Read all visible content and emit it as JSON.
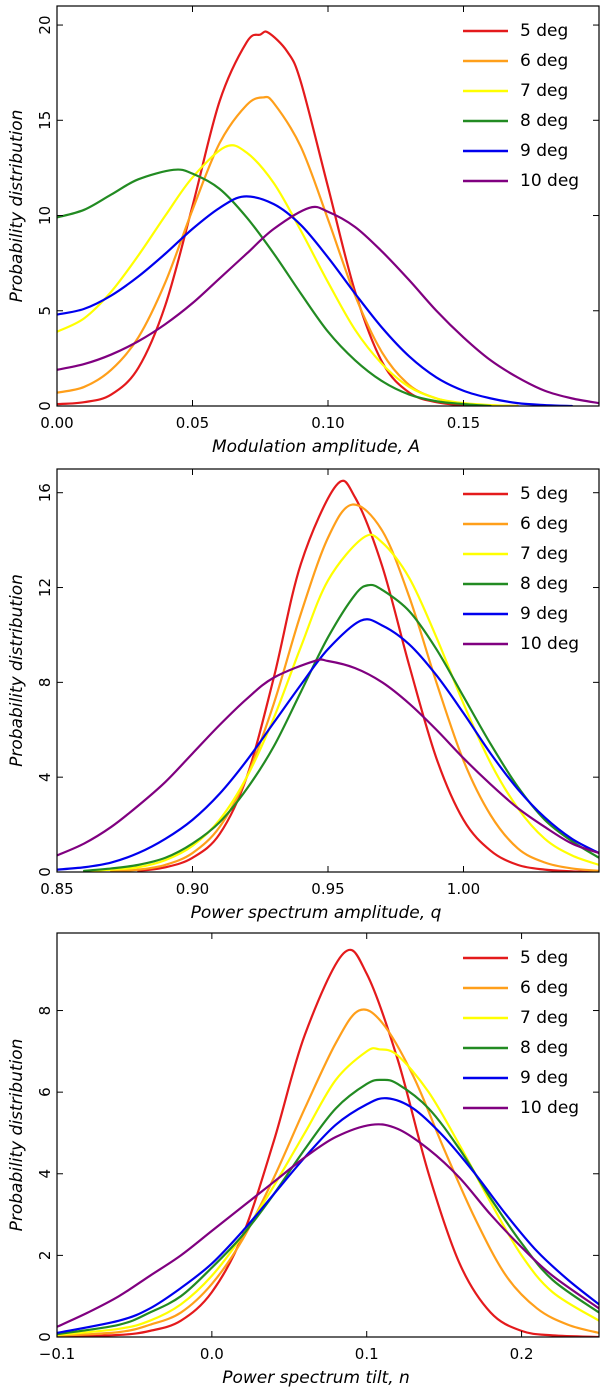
{
  "chart_data": [
    {
      "type": "line",
      "xlabel": "Modulation amplitude, A",
      "ylabel": "Probability distribution",
      "xlim": [
        0.0,
        0.2
      ],
      "ylim": [
        0,
        21
      ],
      "xticks": [
        0.0,
        0.05,
        0.1,
        0.15
      ],
      "xtick_labels": [
        "0.00",
        "0.05",
        "0.10",
        "0.15"
      ],
      "yticks": [
        0,
        5,
        10,
        15,
        20
      ],
      "ytick_labels": [
        "0",
        "5",
        "10",
        "15",
        "20"
      ],
      "legend_position": "top-right",
      "series": [
        {
          "name": "5 deg",
          "color": "#e41a1c",
          "x": [
            0.0,
            0.01,
            0.02,
            0.03,
            0.04,
            0.05,
            0.06,
            0.07,
            0.075,
            0.078,
            0.085,
            0.09,
            0.1,
            0.11,
            0.12,
            0.13,
            0.14,
            0.15,
            0.16,
            0.17
          ],
          "y": [
            0.1,
            0.2,
            0.6,
            2.0,
            5.3,
            10.5,
            16.0,
            19.1,
            19.5,
            19.6,
            18.6,
            17.0,
            11.5,
            6.0,
            2.3,
            0.7,
            0.2,
            0.05,
            0.01,
            0
          ]
        },
        {
          "name": "6 deg",
          "color": "#ff9f1a",
          "x": [
            0.0,
            0.01,
            0.02,
            0.03,
            0.04,
            0.05,
            0.06,
            0.07,
            0.076,
            0.08,
            0.09,
            0.1,
            0.11,
            0.12,
            0.13,
            0.14,
            0.15,
            0.16,
            0.17
          ],
          "y": [
            0.7,
            1.0,
            1.9,
            3.6,
            6.5,
            10.3,
            13.8,
            15.8,
            16.2,
            15.9,
            13.6,
            9.8,
            5.8,
            2.8,
            1.1,
            0.4,
            0.12,
            0.03,
            0
          ]
        },
        {
          "name": "7 deg",
          "color": "#ffff00",
          "x": [
            0.0,
            0.01,
            0.02,
            0.03,
            0.04,
            0.05,
            0.062,
            0.07,
            0.08,
            0.09,
            0.1,
            0.11,
            0.12,
            0.13,
            0.14,
            0.15,
            0.16,
            0.17
          ],
          "y": [
            3.9,
            4.6,
            6.0,
            7.9,
            10.0,
            12.0,
            13.6,
            13.3,
            11.7,
            9.2,
            6.5,
            4.0,
            2.2,
            1.0,
            0.4,
            0.15,
            0.05,
            0
          ]
        },
        {
          "name": "8 deg",
          "color": "#228b22",
          "x": [
            0.0,
            0.01,
            0.02,
            0.03,
            0.043,
            0.05,
            0.06,
            0.07,
            0.08,
            0.09,
            0.1,
            0.11,
            0.12,
            0.13,
            0.14,
            0.15,
            0.16
          ],
          "y": [
            9.9,
            10.3,
            11.1,
            11.9,
            12.4,
            12.2,
            11.4,
            9.9,
            8.0,
            5.9,
            3.9,
            2.4,
            1.3,
            0.6,
            0.25,
            0.1,
            0
          ]
        },
        {
          "name": "9 deg",
          "color": "#0000ee",
          "x": [
            0.0,
            0.01,
            0.02,
            0.03,
            0.04,
            0.05,
            0.06,
            0.069,
            0.08,
            0.09,
            0.1,
            0.11,
            0.12,
            0.13,
            0.14,
            0.15,
            0.16,
            0.17,
            0.18,
            0.19
          ],
          "y": [
            4.8,
            5.1,
            5.8,
            6.8,
            8.0,
            9.3,
            10.4,
            11.0,
            10.6,
            9.5,
            7.8,
            5.9,
            4.1,
            2.6,
            1.5,
            0.8,
            0.4,
            0.15,
            0.05,
            0
          ]
        },
        {
          "name": "10 deg",
          "color": "#800080",
          "x": [
            0.0,
            0.01,
            0.02,
            0.03,
            0.04,
            0.05,
            0.06,
            0.07,
            0.08,
            0.093,
            0.1,
            0.11,
            0.12,
            0.13,
            0.14,
            0.15,
            0.16,
            0.17,
            0.18,
            0.19,
            0.2
          ],
          "y": [
            1.9,
            2.2,
            2.7,
            3.4,
            4.3,
            5.4,
            6.7,
            8.0,
            9.3,
            10.4,
            10.2,
            9.4,
            8.1,
            6.6,
            5.0,
            3.6,
            2.4,
            1.5,
            0.8,
            0.4,
            0.15
          ]
        }
      ]
    },
    {
      "type": "line",
      "xlabel": "Power spectrum amplitude, q",
      "ylabel": "Probability distribution",
      "xlim": [
        0.85,
        1.05
      ],
      "ylim": [
        0,
        17
      ],
      "xticks": [
        0.85,
        0.9,
        0.95,
        1.0
      ],
      "xtick_labels": [
        "0.85",
        "0.90",
        "0.95",
        "1.00"
      ],
      "yticks": [
        0,
        4,
        8,
        12,
        16
      ],
      "ytick_labels": [
        "0",
        "4",
        "8",
        "12",
        "16"
      ],
      "legend_position": "top-right",
      "series": [
        {
          "name": "5 deg",
          "color": "#e41a1c",
          "x": [
            0.88,
            0.89,
            0.9,
            0.91,
            0.92,
            0.93,
            0.94,
            0.953,
            0.96,
            0.97,
            0.98,
            0.99,
            1.0,
            1.01,
            1.02,
            1.03,
            1.04,
            1.05
          ],
          "y": [
            0.05,
            0.2,
            0.6,
            1.6,
            4.0,
            8.2,
            13.0,
            16.3,
            15.8,
            12.9,
            8.7,
            4.8,
            2.2,
            0.9,
            0.3,
            0.1,
            0.03,
            0
          ]
        },
        {
          "name": "6 deg",
          "color": "#ff9f1a",
          "x": [
            0.87,
            0.88,
            0.89,
            0.9,
            0.91,
            0.92,
            0.93,
            0.94,
            0.95,
            0.959,
            0.97,
            0.98,
            0.99,
            1.0,
            1.01,
            1.02,
            1.03,
            1.04,
            1.05
          ],
          "y": [
            0.03,
            0.1,
            0.3,
            0.8,
            1.9,
            4.0,
            7.1,
            10.9,
            14.1,
            15.5,
            14.4,
            11.6,
            8.0,
            4.7,
            2.4,
            1.0,
            0.4,
            0.15,
            0.05
          ]
        },
        {
          "name": "7 deg",
          "color": "#ffff00",
          "x": [
            0.86,
            0.87,
            0.88,
            0.89,
            0.9,
            0.91,
            0.92,
            0.93,
            0.94,
            0.95,
            0.963,
            0.97,
            0.98,
            0.99,
            1.0,
            1.01,
            1.02,
            1.03,
            1.04,
            1.05
          ],
          "y": [
            0.03,
            0.1,
            0.2,
            0.5,
            1.1,
            2.2,
            4.0,
            6.5,
            9.5,
            12.3,
            14.1,
            13.9,
            12.4,
            9.9,
            7.1,
            4.6,
            2.7,
            1.4,
            0.7,
            0.3
          ]
        },
        {
          "name": "8 deg",
          "color": "#228b22",
          "x": [
            0.86,
            0.87,
            0.88,
            0.89,
            0.9,
            0.91,
            0.92,
            0.93,
            0.94,
            0.95,
            0.96,
            0.965,
            0.97,
            0.98,
            0.99,
            1.0,
            1.01,
            1.02,
            1.03,
            1.04,
            1.05
          ],
          "y": [
            0.05,
            0.15,
            0.3,
            0.6,
            1.2,
            2.1,
            3.5,
            5.3,
            7.6,
            9.9,
            11.7,
            12.1,
            11.9,
            11.0,
            9.4,
            7.4,
            5.4,
            3.6,
            2.2,
            1.3,
            0.6
          ]
        },
        {
          "name": "9 deg",
          "color": "#0000ee",
          "x": [
            0.85,
            0.86,
            0.87,
            0.88,
            0.89,
            0.9,
            0.91,
            0.92,
            0.93,
            0.94,
            0.95,
            0.962,
            0.97,
            0.98,
            0.99,
            1.0,
            1.01,
            1.02,
            1.03,
            1.04,
            1.05
          ],
          "y": [
            0.1,
            0.2,
            0.4,
            0.8,
            1.4,
            2.2,
            3.3,
            4.7,
            6.3,
            7.9,
            9.4,
            10.6,
            10.4,
            9.6,
            8.3,
            6.7,
            5.0,
            3.5,
            2.3,
            1.4,
            0.8
          ]
        },
        {
          "name": "10 deg",
          "color": "#800080",
          "x": [
            0.85,
            0.86,
            0.87,
            0.88,
            0.89,
            0.9,
            0.91,
            0.92,
            0.93,
            0.945,
            0.95,
            0.96,
            0.97,
            0.98,
            0.99,
            1.0,
            1.01,
            1.02,
            1.03,
            1.04,
            1.05
          ],
          "y": [
            0.7,
            1.2,
            1.9,
            2.8,
            3.8,
            5.0,
            6.2,
            7.3,
            8.2,
            8.9,
            8.9,
            8.6,
            8.0,
            7.1,
            6.0,
            4.8,
            3.7,
            2.7,
            1.9,
            1.2,
            0.8
          ]
        }
      ]
    },
    {
      "type": "line",
      "xlabel": "Power spectrum tilt, n",
      "ylabel": "Probability distribution",
      "xlim": [
        -0.1,
        0.25
      ],
      "ylim": [
        0,
        9.9
      ],
      "xticks": [
        -0.1,
        0.0,
        0.1,
        0.2
      ],
      "xtick_labels": [
        "−0.1",
        "0.0",
        "0.1",
        "0.2"
      ],
      "yticks": [
        0,
        2,
        4,
        6,
        8
      ],
      "ytick_labels": [
        "0",
        "2",
        "4",
        "6",
        "8"
      ],
      "legend_position": "top-right",
      "series": [
        {
          "name": "5 deg",
          "color": "#e41a1c",
          "x": [
            -0.1,
            -0.06,
            -0.04,
            -0.02,
            0.0,
            0.02,
            0.04,
            0.06,
            0.085,
            0.1,
            0.12,
            0.14,
            0.16,
            0.18,
            0.2,
            0.22,
            0.25
          ],
          "y": [
            0.01,
            0.05,
            0.15,
            0.4,
            1.1,
            2.5,
            4.8,
            7.4,
            9.4,
            8.9,
            6.8,
            4.0,
            1.8,
            0.6,
            0.15,
            0.04,
            0
          ]
        },
        {
          "name": "6 deg",
          "color": "#ff9f1a",
          "x": [
            -0.1,
            -0.06,
            -0.04,
            -0.02,
            0.0,
            0.02,
            0.04,
            0.06,
            0.08,
            0.095,
            0.11,
            0.13,
            0.15,
            0.17,
            0.19,
            0.21,
            0.23,
            0.25
          ],
          "y": [
            0.03,
            0.12,
            0.3,
            0.6,
            1.3,
            2.4,
            3.9,
            5.6,
            7.2,
            8.0,
            7.7,
            6.4,
            4.6,
            2.9,
            1.5,
            0.7,
            0.3,
            0.1
          ]
        },
        {
          "name": "7 deg",
          "color": "#ffff00",
          "x": [
            -0.1,
            -0.06,
            -0.04,
            -0.02,
            0.0,
            0.02,
            0.04,
            0.06,
            0.08,
            0.1,
            0.108,
            0.12,
            0.14,
            0.16,
            0.18,
            0.2,
            0.22,
            0.25
          ],
          "y": [
            0.05,
            0.2,
            0.4,
            0.8,
            1.5,
            2.5,
            3.7,
            5.0,
            6.3,
            7.0,
            7.05,
            6.9,
            6.0,
            4.7,
            3.3,
            2.0,
            1.1,
            0.4
          ]
        },
        {
          "name": "8 deg",
          "color": "#228b22",
          "x": [
            -0.1,
            -0.06,
            -0.04,
            -0.02,
            0.0,
            0.02,
            0.04,
            0.06,
            0.08,
            0.1,
            0.11,
            0.12,
            0.14,
            0.16,
            0.18,
            0.2,
            0.22,
            0.25
          ],
          "y": [
            0.07,
            0.3,
            0.6,
            1.0,
            1.7,
            2.5,
            3.5,
            4.6,
            5.6,
            6.2,
            6.3,
            6.2,
            5.6,
            4.6,
            3.4,
            2.3,
            1.4,
            0.6
          ]
        },
        {
          "name": "9 deg",
          "color": "#0000ee",
          "x": [
            -0.1,
            -0.06,
            -0.04,
            -0.02,
            0.0,
            0.02,
            0.04,
            0.06,
            0.08,
            0.1,
            0.113,
            0.13,
            0.15,
            0.17,
            0.19,
            0.21,
            0.23,
            0.25
          ],
          "y": [
            0.1,
            0.4,
            0.7,
            1.2,
            1.8,
            2.6,
            3.5,
            4.4,
            5.2,
            5.7,
            5.85,
            5.6,
            4.9,
            4.0,
            3.0,
            2.1,
            1.4,
            0.8
          ]
        },
        {
          "name": "10 deg",
          "color": "#800080",
          "x": [
            -0.1,
            -0.08,
            -0.06,
            -0.04,
            -0.02,
            0.0,
            0.02,
            0.04,
            0.06,
            0.08,
            0.103,
            0.12,
            0.14,
            0.16,
            0.18,
            0.2,
            0.22,
            0.25
          ],
          "y": [
            0.25,
            0.6,
            1.0,
            1.5,
            2.0,
            2.6,
            3.2,
            3.8,
            4.4,
            4.9,
            5.2,
            5.1,
            4.6,
            3.9,
            3.0,
            2.2,
            1.5,
            0.7
          ]
        }
      ]
    }
  ]
}
